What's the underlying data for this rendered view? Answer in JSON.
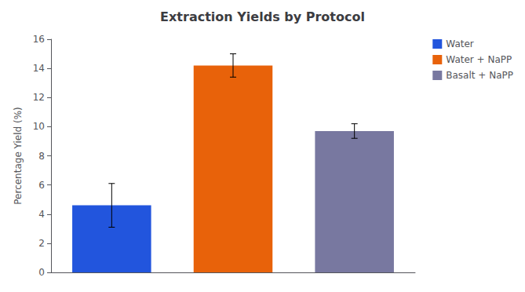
{
  "chart_data": {
    "type": "bar",
    "title": "Extraction Yields by Protocol",
    "ylabel": "Percentage Yield (%)",
    "categories": [
      "Water",
      "Water + NaPP",
      "Basalt + NaPP"
    ],
    "values": [
      4.6,
      14.2,
      9.7
    ],
    "errors": [
      1.5,
      0.8,
      0.5
    ],
    "colors": [
      "#2255dd",
      "#e8620a",
      "#7878a0"
    ],
    "ylim": [
      0,
      16
    ],
    "yticks": [
      0,
      2,
      4,
      6,
      8,
      10,
      12,
      14,
      16
    ],
    "grid": false,
    "legend": "upper right",
    "tick_labels": "y"
  }
}
